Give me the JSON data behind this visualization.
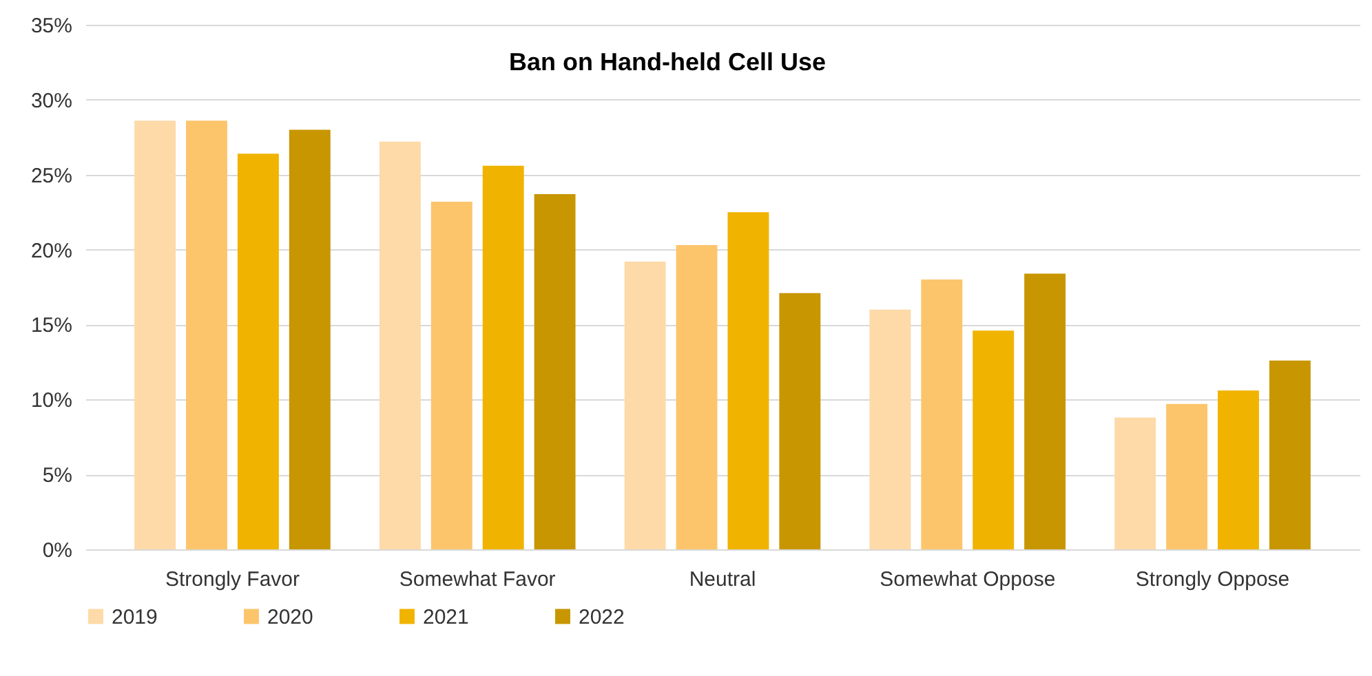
{
  "chart_data": {
    "type": "bar",
    "title": "Ban on Hand-held Cell Use",
    "categories": [
      "Strongly Favor",
      "Somewhat Favor",
      "Neutral",
      "Somewhat Oppose",
      "Strongly Oppose"
    ],
    "series": [
      {
        "name": "2019",
        "color": "#fddaa8",
        "values": [
          28.6,
          27.2,
          19.2,
          16.0,
          8.8
        ]
      },
      {
        "name": "2020",
        "color": "#fcc56c",
        "values": [
          28.6,
          23.2,
          20.3,
          18.0,
          9.7
        ]
      },
      {
        "name": "2021",
        "color": "#f0b300",
        "values": [
          26.4,
          25.6,
          22.5,
          14.6,
          10.6
        ]
      },
      {
        "name": "2022",
        "color": "#c89600",
        "values": [
          28.0,
          23.7,
          17.1,
          18.4,
          12.6
        ]
      }
    ],
    "ylim": [
      0,
      35
    ],
    "yticks": [
      {
        "value": 0,
        "label": "0%"
      },
      {
        "value": 5,
        "label": "5%"
      },
      {
        "value": 10,
        "label": "10%"
      },
      {
        "value": 15,
        "label": "15%"
      },
      {
        "value": 20,
        "label": "20%"
      },
      {
        "value": 25,
        "label": "25%"
      },
      {
        "value": 30,
        "label": "30%"
      },
      {
        "value": 35,
        "label": "35%"
      }
    ],
    "grid": "y",
    "legend": "bottom"
  }
}
